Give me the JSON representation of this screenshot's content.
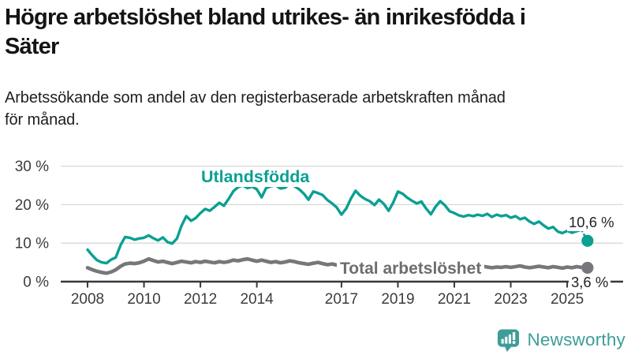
{
  "header": {
    "title_line1": "Högre arbetslöshet bland utrikes- än inrikesfödda i",
    "title_line2": "Säter",
    "subtitle_line1": "Arbetssökande som andel av den registerbaserade arbetskraften månad",
    "subtitle_line2": "för månad."
  },
  "branding": {
    "logo_text": "Newsworthy",
    "logo_icon": "bar-chart-speech-bubble-icon",
    "brand_color": "#3e9d98"
  },
  "chart_data": {
    "type": "line",
    "title": "Högre arbetslöshet bland utrikes- än inrikesfödda i Säter",
    "subtitle": "Arbetssökande som andel av den registerbaserade arbetskraften månad för månad.",
    "grid": true,
    "legend": "inline-labels",
    "colors": {
      "foreign_born": "#0aa092",
      "total": "#77777b",
      "grid": "#d8d8d8",
      "axis": "#37373c",
      "tick_text": "#3c3c3c"
    },
    "x_axis": {
      "min": 2008,
      "max": 2026,
      "ticks": [
        {
          "v": 2008,
          "label": "2008"
        },
        {
          "v": 2010,
          "label": "2010"
        },
        {
          "v": 2012,
          "label": "2012"
        },
        {
          "v": 2014,
          "label": "2014"
        },
        {
          "v": 2017,
          "label": "2017"
        },
        {
          "v": 2019,
          "label": "2019"
        },
        {
          "v": 2021,
          "label": "2021"
        },
        {
          "v": 2023,
          "label": "2023"
        },
        {
          "v": 2025,
          "label": "2025"
        }
      ]
    },
    "y_axis": {
      "min": 0,
      "max": 30,
      "unit": "%",
      "ticks": [
        {
          "v": 0,
          "label": "0 %"
        },
        {
          "v": 10,
          "label": "10 %"
        },
        {
          "v": 20,
          "label": "20 %"
        },
        {
          "v": 30,
          "label": "30 %"
        }
      ]
    },
    "series": [
      {
        "name": "Utlandsfödda",
        "color": "#0aa092",
        "end_point": {
          "x": 2025.72,
          "y": 10.6,
          "label": "10,6 %",
          "dashed_connector": true
        },
        "points": [
          [
            2008.0,
            8.3
          ],
          [
            2008.17,
            6.8
          ],
          [
            2008.33,
            5.6
          ],
          [
            2008.5,
            5.0
          ],
          [
            2008.67,
            4.8
          ],
          [
            2008.83,
            5.7
          ],
          [
            2009.0,
            6.3
          ],
          [
            2009.17,
            9.5
          ],
          [
            2009.33,
            11.6
          ],
          [
            2009.5,
            11.4
          ],
          [
            2009.67,
            10.9
          ],
          [
            2009.83,
            11.2
          ],
          [
            2010.0,
            11.4
          ],
          [
            2010.17,
            12.0
          ],
          [
            2010.33,
            11.3
          ],
          [
            2010.5,
            10.7
          ],
          [
            2010.67,
            11.5
          ],
          [
            2010.83,
            10.3
          ],
          [
            2011.0,
            9.9
          ],
          [
            2011.17,
            11.2
          ],
          [
            2011.33,
            14.5
          ],
          [
            2011.5,
            17.0
          ],
          [
            2011.67,
            15.8
          ],
          [
            2011.83,
            16.5
          ],
          [
            2012.0,
            17.8
          ],
          [
            2012.17,
            18.9
          ],
          [
            2012.33,
            18.4
          ],
          [
            2012.5,
            19.4
          ],
          [
            2012.67,
            20.5
          ],
          [
            2012.83,
            19.7
          ],
          [
            2013.0,
            21.5
          ],
          [
            2013.17,
            23.5
          ],
          [
            2013.33,
            24.5
          ],
          [
            2013.5,
            25.0
          ],
          [
            2013.67,
            24.3
          ],
          [
            2013.83,
            24.7
          ],
          [
            2014.0,
            24.0
          ],
          [
            2014.17,
            21.9
          ],
          [
            2014.33,
            24.3
          ],
          [
            2014.5,
            24.8
          ],
          [
            2014.67,
            25.0
          ],
          [
            2014.83,
            24.2
          ],
          [
            2015.0,
            24.4
          ],
          [
            2015.17,
            25.3
          ],
          [
            2015.33,
            24.8
          ],
          [
            2015.5,
            24.0
          ],
          [
            2015.67,
            22.8
          ],
          [
            2015.83,
            21.3
          ],
          [
            2016.0,
            23.4
          ],
          [
            2016.17,
            23.0
          ],
          [
            2016.33,
            22.5
          ],
          [
            2016.5,
            21.2
          ],
          [
            2016.67,
            20.3
          ],
          [
            2016.83,
            19.3
          ],
          [
            2017.0,
            17.4
          ],
          [
            2017.17,
            19.0
          ],
          [
            2017.33,
            21.5
          ],
          [
            2017.5,
            23.6
          ],
          [
            2017.67,
            22.3
          ],
          [
            2017.83,
            21.5
          ],
          [
            2018.0,
            20.9
          ],
          [
            2018.17,
            19.9
          ],
          [
            2018.33,
            21.3
          ],
          [
            2018.5,
            20.2
          ],
          [
            2018.67,
            18.4
          ],
          [
            2018.83,
            20.5
          ],
          [
            2019.0,
            23.4
          ],
          [
            2019.17,
            22.8
          ],
          [
            2019.33,
            21.8
          ],
          [
            2019.5,
            21.0
          ],
          [
            2019.67,
            20.3
          ],
          [
            2019.83,
            20.8
          ],
          [
            2020.0,
            19.0
          ],
          [
            2020.17,
            17.5
          ],
          [
            2020.33,
            19.4
          ],
          [
            2020.5,
            20.9
          ],
          [
            2020.67,
            19.8
          ],
          [
            2020.83,
            18.3
          ],
          [
            2021.0,
            17.8
          ],
          [
            2021.17,
            17.2
          ],
          [
            2021.33,
            16.9
          ],
          [
            2021.5,
            17.3
          ],
          [
            2021.67,
            17.0
          ],
          [
            2021.83,
            17.4
          ],
          [
            2022.0,
            17.1
          ],
          [
            2022.17,
            17.6
          ],
          [
            2022.33,
            16.8
          ],
          [
            2022.5,
            17.4
          ],
          [
            2022.67,
            17.0
          ],
          [
            2022.83,
            17.3
          ],
          [
            2023.0,
            16.6
          ],
          [
            2023.17,
            17.0
          ],
          [
            2023.33,
            16.2
          ],
          [
            2023.5,
            16.6
          ],
          [
            2023.67,
            15.6
          ],
          [
            2023.83,
            15.0
          ],
          [
            2024.0,
            15.6
          ],
          [
            2024.17,
            14.6
          ],
          [
            2024.33,
            13.8
          ],
          [
            2024.5,
            14.2
          ],
          [
            2024.67,
            13.0
          ],
          [
            2024.83,
            12.6
          ],
          [
            2025.0,
            13.2
          ],
          [
            2025.17,
            12.7
          ],
          [
            2025.33,
            13.1
          ],
          [
            2025.5,
            13.5
          ]
        ]
      },
      {
        "name": "Total arbetslöshet",
        "color": "#77777b",
        "end_point": {
          "x": 2025.72,
          "y": 3.6,
          "label": "3,6 %",
          "dashed_connector": false
        },
        "points": [
          [
            2008.0,
            3.6
          ],
          [
            2008.17,
            3.1
          ],
          [
            2008.33,
            2.7
          ],
          [
            2008.5,
            2.4
          ],
          [
            2008.67,
            2.2
          ],
          [
            2008.83,
            2.5
          ],
          [
            2009.0,
            3.1
          ],
          [
            2009.17,
            4.0
          ],
          [
            2009.33,
            4.6
          ],
          [
            2009.5,
            4.8
          ],
          [
            2009.67,
            4.7
          ],
          [
            2009.83,
            4.9
          ],
          [
            2010.0,
            5.3
          ],
          [
            2010.17,
            5.9
          ],
          [
            2010.33,
            5.5
          ],
          [
            2010.5,
            5.1
          ],
          [
            2010.67,
            5.3
          ],
          [
            2010.83,
            5.0
          ],
          [
            2011.0,
            4.7
          ],
          [
            2011.17,
            5.0
          ],
          [
            2011.33,
            5.3
          ],
          [
            2011.5,
            5.1
          ],
          [
            2011.67,
            4.9
          ],
          [
            2011.83,
            5.2
          ],
          [
            2012.0,
            5.0
          ],
          [
            2012.17,
            5.3
          ],
          [
            2012.33,
            5.1
          ],
          [
            2012.5,
            4.9
          ],
          [
            2012.67,
            5.2
          ],
          [
            2012.83,
            5.0
          ],
          [
            2013.0,
            5.2
          ],
          [
            2013.17,
            5.6
          ],
          [
            2013.33,
            5.4
          ],
          [
            2013.5,
            5.7
          ],
          [
            2013.67,
            5.9
          ],
          [
            2013.83,
            5.6
          ],
          [
            2014.0,
            5.3
          ],
          [
            2014.17,
            5.6
          ],
          [
            2014.33,
            5.3
          ],
          [
            2014.5,
            5.0
          ],
          [
            2014.67,
            5.2
          ],
          [
            2014.83,
            4.9
          ],
          [
            2015.0,
            5.1
          ],
          [
            2015.17,
            5.4
          ],
          [
            2015.33,
            5.2
          ],
          [
            2015.5,
            4.9
          ],
          [
            2015.67,
            4.7
          ],
          [
            2015.83,
            4.5
          ],
          [
            2016.0,
            4.8
          ],
          [
            2016.17,
            5.0
          ],
          [
            2016.33,
            4.7
          ],
          [
            2016.5,
            4.4
          ],
          [
            2016.67,
            4.6
          ],
          [
            2016.83,
            4.3
          ],
          [
            2017.0,
            4.0
          ],
          [
            2017.17,
            4.2
          ],
          [
            2017.33,
            4.4
          ],
          [
            2017.5,
            4.1
          ],
          [
            2017.67,
            3.9
          ],
          [
            2017.83,
            4.2
          ],
          [
            2018.0,
            4.4
          ],
          [
            2018.17,
            4.6
          ],
          [
            2018.33,
            4.3
          ],
          [
            2018.5,
            4.1
          ],
          [
            2018.67,
            4.3
          ],
          [
            2018.83,
            4.5
          ],
          [
            2019.0,
            4.7
          ],
          [
            2019.17,
            4.4
          ],
          [
            2019.33,
            4.2
          ],
          [
            2019.5,
            4.4
          ],
          [
            2019.67,
            4.1
          ],
          [
            2019.83,
            4.3
          ],
          [
            2020.0,
            4.5
          ],
          [
            2020.17,
            4.9
          ],
          [
            2020.33,
            5.2
          ],
          [
            2020.5,
            5.0
          ],
          [
            2020.67,
            4.8
          ],
          [
            2020.83,
            4.6
          ],
          [
            2021.0,
            4.8
          ],
          [
            2021.17,
            4.6
          ],
          [
            2021.33,
            4.4
          ],
          [
            2021.5,
            4.2
          ],
          [
            2021.67,
            4.0
          ],
          [
            2021.83,
            4.2
          ],
          [
            2022.0,
            4.0
          ],
          [
            2022.17,
            3.8
          ],
          [
            2022.33,
            3.6
          ],
          [
            2022.5,
            3.8
          ],
          [
            2022.67,
            3.7
          ],
          [
            2022.83,
            3.9
          ],
          [
            2023.0,
            3.7
          ],
          [
            2023.17,
            3.9
          ],
          [
            2023.33,
            4.1
          ],
          [
            2023.5,
            3.8
          ],
          [
            2023.67,
            3.6
          ],
          [
            2023.83,
            3.8
          ],
          [
            2024.0,
            4.0
          ],
          [
            2024.17,
            3.8
          ],
          [
            2024.33,
            3.6
          ],
          [
            2024.5,
            3.9
          ],
          [
            2024.67,
            3.7
          ],
          [
            2024.83,
            3.5
          ],
          [
            2025.0,
            3.8
          ],
          [
            2025.17,
            3.6
          ],
          [
            2025.33,
            3.9
          ],
          [
            2025.5,
            3.7
          ]
        ]
      }
    ]
  }
}
